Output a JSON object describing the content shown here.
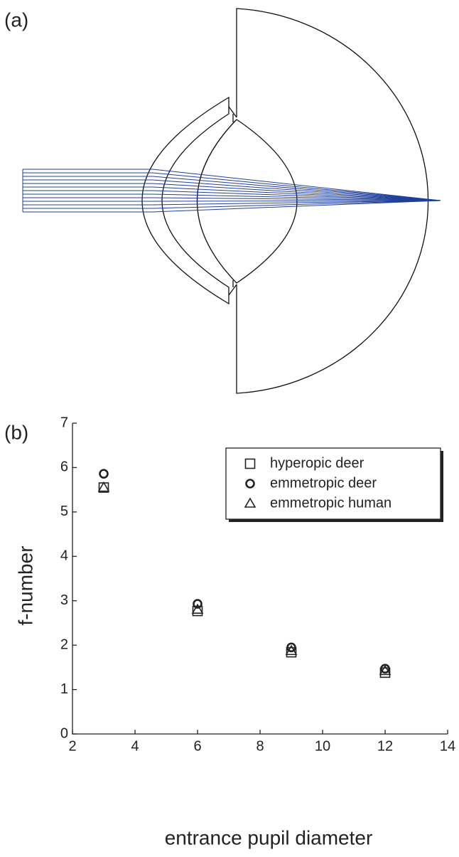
{
  "panel_a": {
    "label": "(a)"
  },
  "chart_data": {
    "type": "scatter",
    "panel_label": "(b)",
    "xlabel": "entrance pupil diameter",
    "ylabel": "f-number",
    "xlim": [
      2,
      14
    ],
    "ylim": [
      0,
      7
    ],
    "xticks": [
      2,
      4,
      6,
      8,
      10,
      12,
      14
    ],
    "yticks": [
      0,
      1,
      2,
      3,
      4,
      5,
      6,
      7
    ],
    "legend": "upper right",
    "series": [
      {
        "name": "hyperopic deer",
        "marker": "square",
        "color": "#222222",
        "x": [
          3,
          6,
          9,
          12
        ],
        "values": [
          5.55,
          2.77,
          1.84,
          1.38
        ]
      },
      {
        "name": "emmetropic deer",
        "marker": "circle",
        "color": "#222222",
        "x": [
          3,
          6,
          9,
          12
        ],
        "values": [
          5.86,
          2.93,
          1.95,
          1.47
        ]
      },
      {
        "name": "emmetropic human",
        "marker": "triangle",
        "color": "#222222",
        "x": [
          3,
          6,
          9,
          12
        ],
        "values": [
          5.55,
          2.8,
          1.87,
          1.42
        ]
      }
    ]
  }
}
